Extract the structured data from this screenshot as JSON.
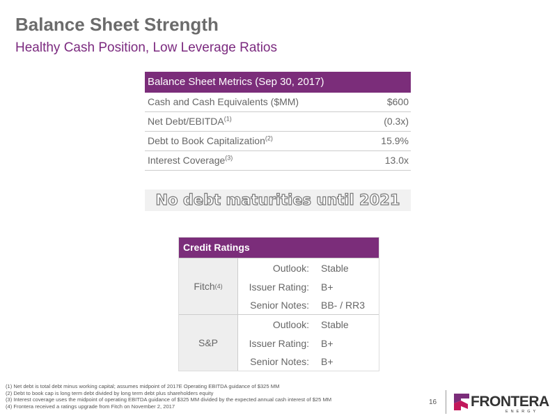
{
  "header": {
    "title": "Balance Sheet Strength",
    "subtitle": "Healthy Cash Position, Low Leverage Ratios"
  },
  "metrics": {
    "title": "Balance Sheet Metrics (Sep 30, 2017)",
    "rows": [
      {
        "label": "Cash and Cash Equivalents ($MM)",
        "value": "$600"
      },
      {
        "label": "Net Debt/EBITDA",
        "note": "(1)",
        "value": "(0.3x)"
      },
      {
        "label": "Debt to Book Capitalization",
        "note": "(2)",
        "value": "15.9%"
      },
      {
        "label": "Interest Coverage",
        "note": "(3)",
        "value": "13.0x"
      }
    ]
  },
  "callout": "No debt maturities until 2021",
  "ratings": {
    "title": "Credit Ratings",
    "agencies": [
      {
        "name": "Fitch",
        "note": "(4)",
        "rows": [
          [
            "Outlook:",
            "Stable"
          ],
          [
            "Issuer Rating:",
            "B+"
          ],
          [
            "Senior Notes:",
            "BB- / RR3"
          ]
        ]
      },
      {
        "name": "S&P",
        "rows": [
          [
            "Outlook:",
            "Stable"
          ],
          [
            "Issuer Rating:",
            "B+"
          ],
          [
            "Senior Notes:",
            "B+"
          ]
        ]
      }
    ]
  },
  "footnotes": [
    "(1)  Net debt is total debt minus working capital; assumes midpoint of 2017E Operating EBITDA guidance of $325 MM",
    "(2)  Debt to book cap is long term debt divided by long term debt plus shareholders equity",
    "(3)  Interest coverage uses the midpoint of operating EBITDA guidance of $325 MM divided by the expected annual cash interest of $25 MM",
    "(4)  Frontera received a ratings upgrade from Fitch on November 2, 2017"
  ],
  "page_number": "16",
  "logo": {
    "name": "FRONTERA",
    "tagline": "ENERGY"
  }
}
